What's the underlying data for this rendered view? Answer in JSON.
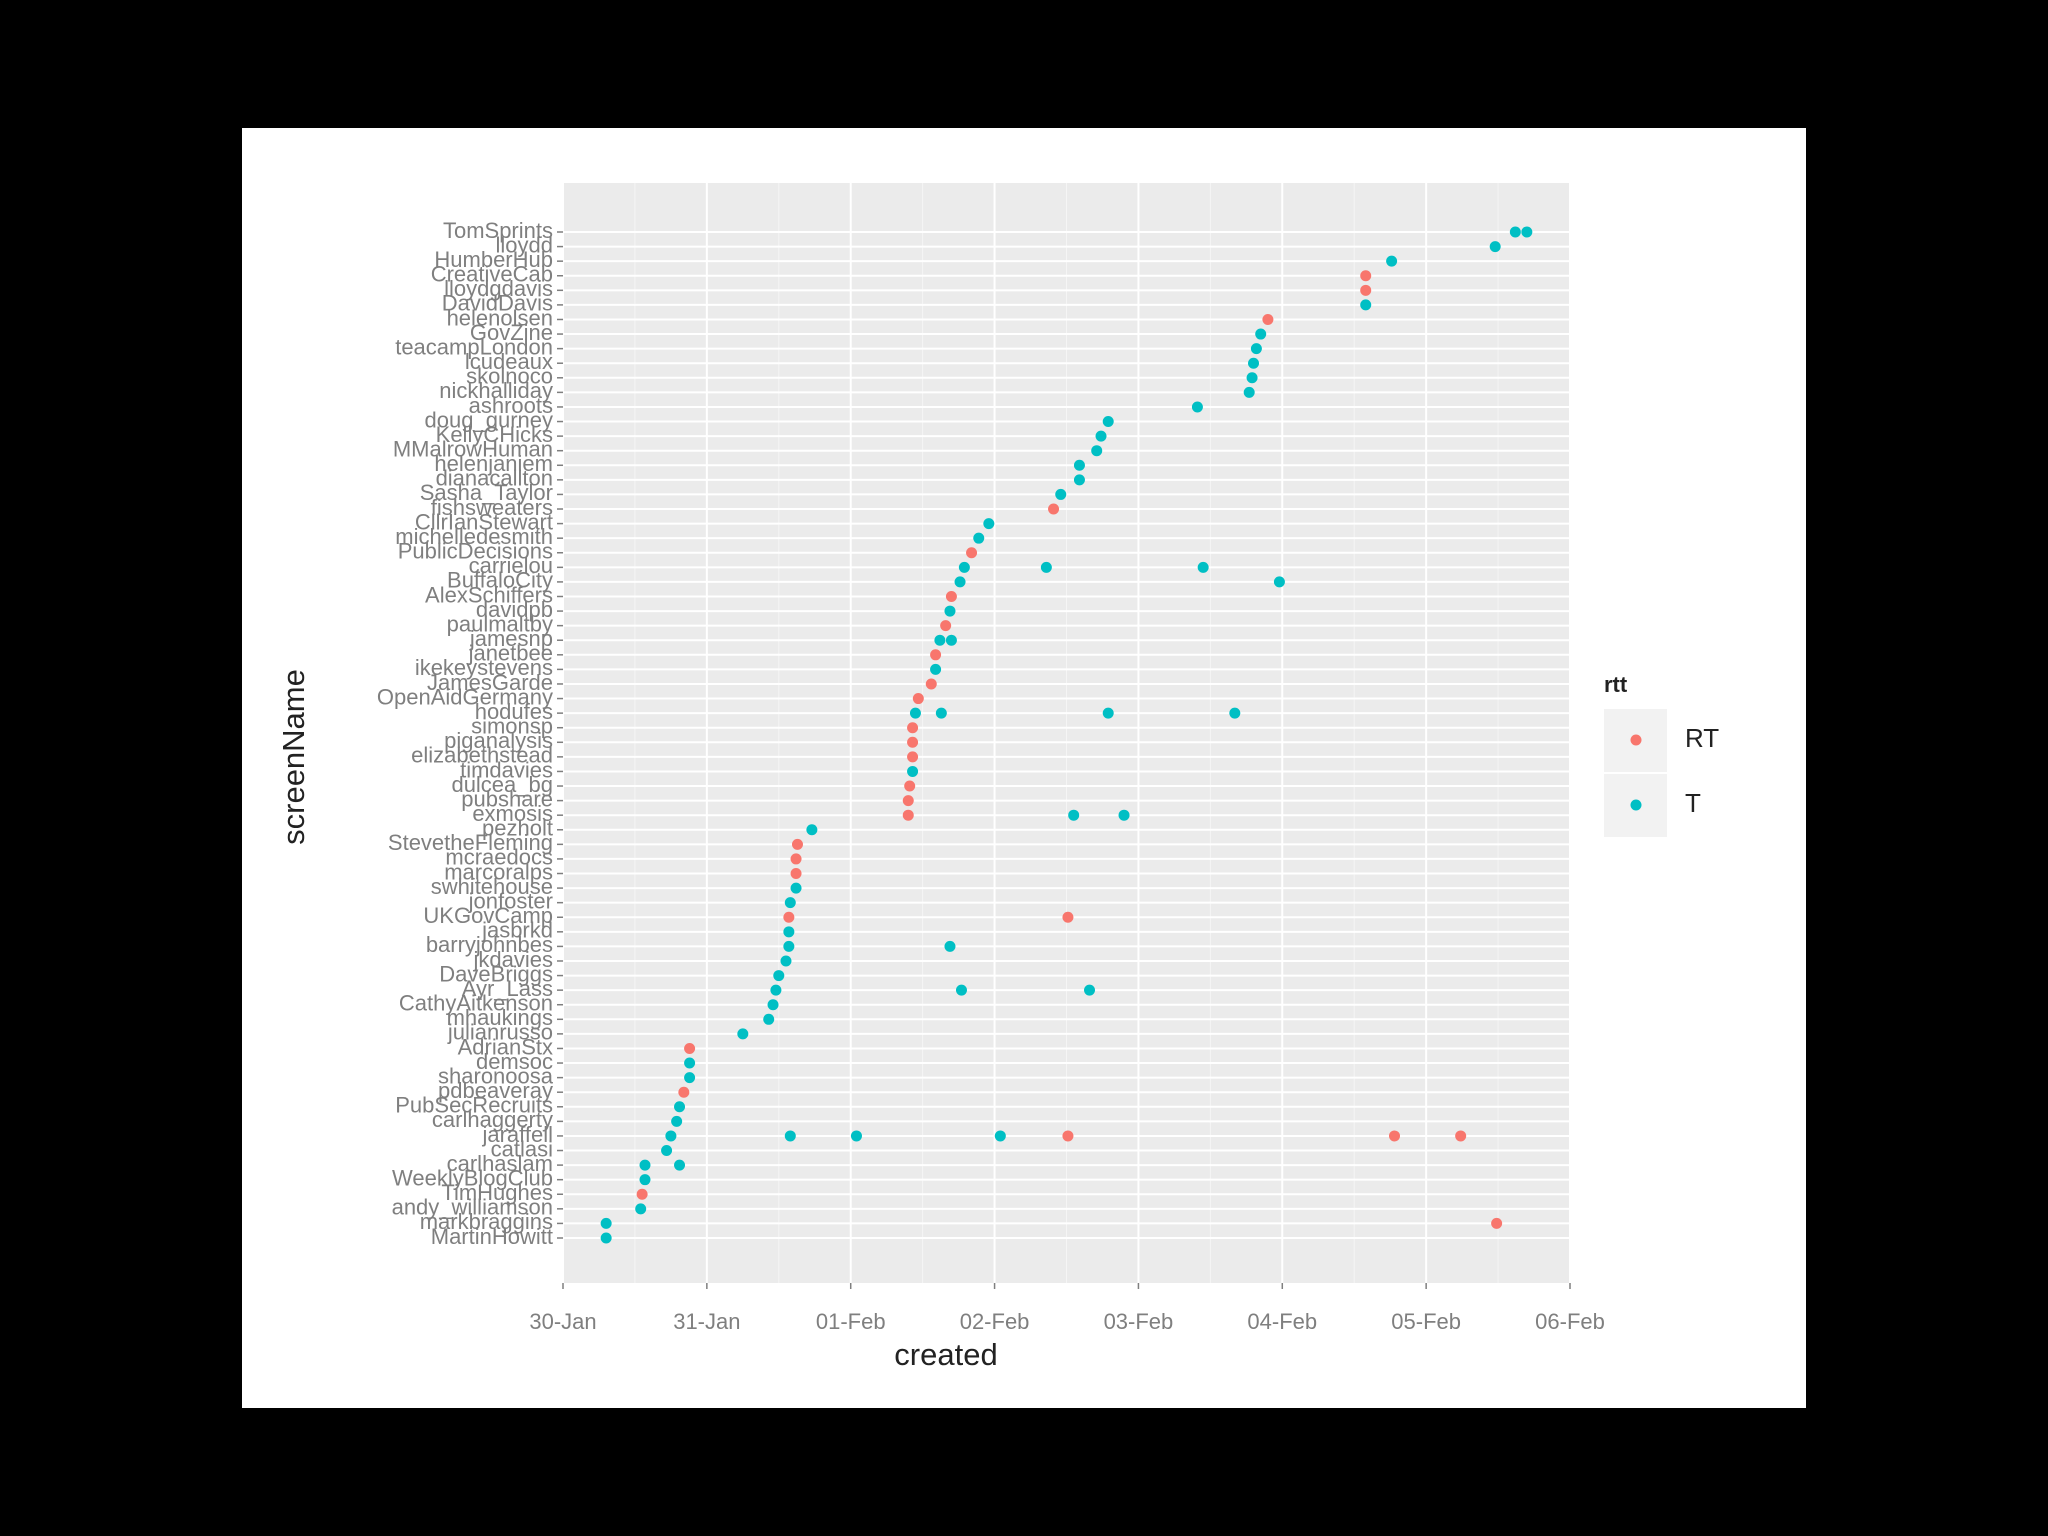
{
  "chart_data": {
    "type": "scatter",
    "x_label": "created",
    "y_label": "screenName",
    "legend_title": "rtt",
    "legend_position": "right",
    "grid": true,
    "xlim": [
      0,
      7
    ],
    "xticks": [
      {
        "value": 0,
        "label": "30-Jan"
      },
      {
        "value": 1,
        "label": "31-Jan"
      },
      {
        "value": 2,
        "label": "01-Feb"
      },
      {
        "value": 3,
        "label": "02-Feb"
      },
      {
        "value": 4,
        "label": "03-Feb"
      },
      {
        "value": 5,
        "label": "04-Feb"
      },
      {
        "value": 6,
        "label": "05-Feb"
      },
      {
        "value": 7,
        "label": "06-Feb"
      }
    ],
    "categories": [
      "TomSprints",
      "lloydd",
      "HumberHub",
      "CreativeCab",
      "lloydgdavis",
      "DavidDavis",
      "helenolsen",
      "GovZine",
      "teacampLondon",
      "lcudeaux",
      "skolnoco",
      "nickhalliday",
      "ashroots",
      "doug_gurney",
      "KellyCHicks",
      "MMalrowHuman",
      "helenjaniem",
      "dianacallton",
      "Sasha_Taylor",
      "fishsweaters",
      "CllrIanStewart",
      "michelledesmith",
      "PublicDecisions",
      "carrielou",
      "BuffaloCity",
      "AlexSchiffers",
      "davidpb",
      "paulmaltby",
      "jamesnp",
      "janetbee",
      "ikekeystevens",
      "JamesGarde",
      "OpenAidGermany",
      "hodufes",
      "simonsp",
      "piganalysis",
      "elizabethstead",
      "timdavies",
      "dulcea_bg",
      "pubshare",
      "exmosis",
      "pezholt",
      "StevetheFleming",
      "mcraedocs",
      "marcoralps",
      "swhitehouse",
      "jonfoster",
      "UKGovCamp",
      "jasbrkd",
      "barryjohnbes",
      "jkdavies",
      "DaveBriggs",
      "Ayr_Lass",
      "CathyAitkenson",
      "mhaukings",
      "julianrusso",
      "AdrianStx",
      "demsoc",
      "sharonoosa",
      "pdbeaveray",
      "PubSecRecruits",
      "carlhaggerty",
      "jaraffell",
      "catlasi",
      "carlhaslam",
      "WeeklyBlogClub",
      "TimHughes",
      "andy_williamson",
      "markbraggins",
      "MartinHowitt"
    ],
    "series": [
      {
        "name": "RT",
        "color": "#F8766D",
        "categories": [
          "CreativeCab",
          "lloydgdavis",
          "helenolsen",
          "fishsweaters",
          "PublicDecisions",
          "AlexSchiffers",
          "paulmaltby",
          "janetbee",
          "JamesGarde",
          "OpenAidGermany",
          "simonsp",
          "piganalysis",
          "elizabethstead",
          "dulcea_bg",
          "pubshare",
          "exmosis",
          "StevetheFleming",
          "mcraedocs",
          "marcoralps",
          "UKGovCamp",
          "UKGovCamp",
          "AdrianStx",
          "pdbeaveray",
          "jaraffell",
          "jaraffell",
          "jaraffell",
          "TimHughes",
          "markbraggins"
        ],
        "values": [
          5.58,
          5.58,
          4.9,
          3.41,
          2.84,
          2.7,
          2.66,
          2.59,
          2.56,
          2.47,
          2.43,
          2.43,
          2.43,
          2.41,
          2.4,
          2.4,
          1.63,
          1.62,
          1.62,
          1.57,
          3.51,
          0.88,
          0.84,
          3.51,
          5.78,
          6.24,
          0.55,
          6.49
        ]
      },
      {
        "name": "T",
        "color": "#00BFC4",
        "categories": [
          "TomSprints",
          "TomSprints",
          "lloydd",
          "HumberHub",
          "DavidDavis",
          "GovZine",
          "teacampLondon",
          "lcudeaux",
          "skolnoco",
          "nickhalliday",
          "ashroots",
          "doug_gurney",
          "KellyCHicks",
          "MMalrowHuman",
          "helenjaniem",
          "dianacallton",
          "Sasha_Taylor",
          "CllrIanStewart",
          "michelledesmith",
          "carrielou",
          "carrielou",
          "carrielou",
          "BuffaloCity",
          "BuffaloCity",
          "davidpb",
          "jamesnp",
          "jamesnp",
          "ikekeystevens",
          "hodufes",
          "hodufes",
          "hodufes",
          "hodufes",
          "timdavies",
          "exmosis",
          "exmosis",
          "pezholt",
          "swhitehouse",
          "jonfoster",
          "jasbrkd",
          "barryjohnbes",
          "barryjohnbes",
          "jkdavies",
          "DaveBriggs",
          "Ayr_Lass",
          "Ayr_Lass",
          "Ayr_Lass",
          "CathyAitkenson",
          "mhaukings",
          "julianrusso",
          "demsoc",
          "sharonoosa",
          "PubSecRecruits",
          "carlhaggerty",
          "jaraffell",
          "jaraffell",
          "jaraffell",
          "jaraffell",
          "catlasi",
          "carlhaslam",
          "carlhaslam",
          "WeeklyBlogClub",
          "andy_williamson",
          "markbraggins",
          "MartinHowitt"
        ],
        "values": [
          6.62,
          6.7,
          6.48,
          5.76,
          5.58,
          4.85,
          4.82,
          4.8,
          4.79,
          4.77,
          4.41,
          3.79,
          3.74,
          3.71,
          3.59,
          3.59,
          3.46,
          2.96,
          2.89,
          2.79,
          3.36,
          4.45,
          2.76,
          4.98,
          2.69,
          2.62,
          2.7,
          2.59,
          2.45,
          2.63,
          3.79,
          4.67,
          2.43,
          3.55,
          3.9,
          1.73,
          1.62,
          1.58,
          1.57,
          1.57,
          2.69,
          1.55,
          1.5,
          1.48,
          2.77,
          3.66,
          1.46,
          1.43,
          1.25,
          0.88,
          0.88,
          0.81,
          0.79,
          0.75,
          1.58,
          2.04,
          3.04,
          0.72,
          0.57,
          0.81,
          0.57,
          0.54,
          0.3,
          0.3
        ]
      }
    ]
  }
}
